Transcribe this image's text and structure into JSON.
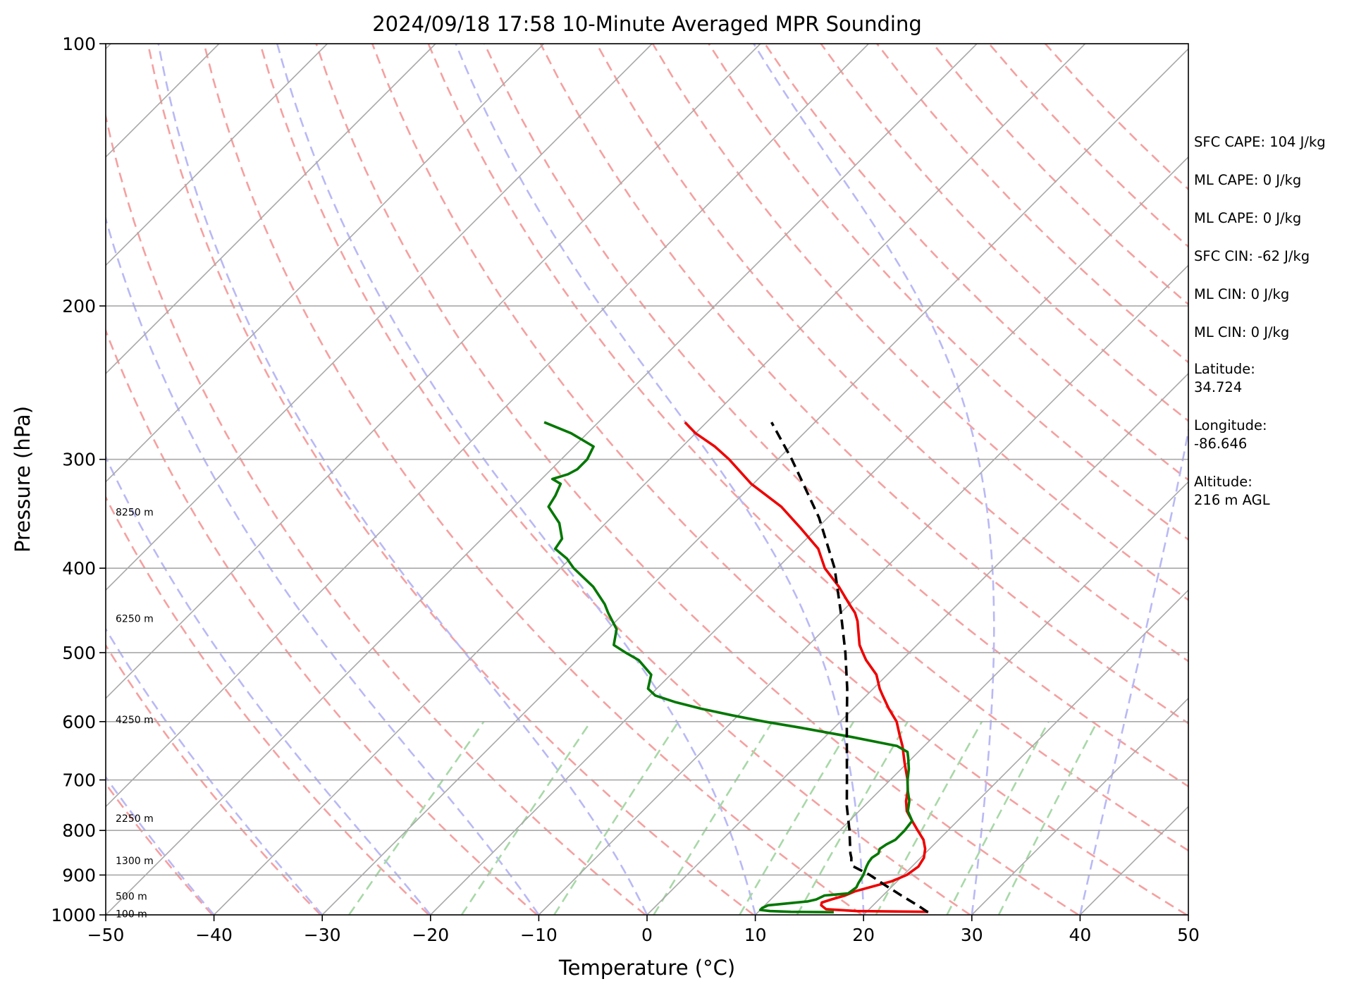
{
  "chart_data": {
    "type": "line",
    "subtype": "skew-t log-p",
    "title": "2024/09/18 17:58 10-Minute Averaged MPR Sounding",
    "xlabel": "Temperature (°C)",
    "ylabel": "Pressure (hPa)",
    "xlim": [
      -50,
      50
    ],
    "ylim": [
      1000,
      100
    ],
    "y_scale": "log",
    "x_ticks": [
      -50,
      -40,
      -30,
      -20,
      -10,
      0,
      10,
      20,
      30,
      40,
      50
    ],
    "x_tick_labels": [
      "−50",
      "−40",
      "−30",
      "−20",
      "−10",
      "0",
      "10",
      "20",
      "30",
      "40",
      "50"
    ],
    "y_ticks": [
      1000,
      900,
      800,
      700,
      600,
      500,
      400,
      300,
      200,
      100
    ],
    "y_tick_labels": [
      "1000",
      "900",
      "800",
      "700",
      "600",
      "500",
      "400",
      "300",
      "200",
      "100"
    ],
    "height_labels": [
      {
        "text": "100 m",
        "p": 997
      },
      {
        "text": "500 m",
        "p": 952
      },
      {
        "text": "1300 m",
        "p": 866
      },
      {
        "text": "2250 m",
        "p": 775
      },
      {
        "text": "4250 m",
        "p": 597
      },
      {
        "text": "6250 m",
        "p": 457
      },
      {
        "text": "8250 m",
        "p": 345
      }
    ],
    "background_lines": {
      "isobars_hpa": [
        100,
        200,
        300,
        400,
        500,
        600,
        700,
        800,
        900,
        1000
      ],
      "isotherms_c": [
        -140,
        -130,
        -120,
        -110,
        -100,
        -90,
        -80,
        -70,
        -60,
        -50,
        -40,
        -30,
        -20,
        -10,
        0,
        10,
        20,
        30,
        40,
        50
      ],
      "dry_adiabats_theta_k": [
        233,
        243,
        253,
        263,
        273,
        283,
        293,
        303,
        313,
        323,
        333,
        343,
        353,
        363,
        373,
        383,
        393,
        403,
        413,
        423,
        433,
        443
      ],
      "moist_adiabats_t1000_c": [
        -50,
        -40,
        -30,
        -20,
        -10,
        0,
        10,
        20,
        30,
        40,
        50
      ],
      "mixing_ratios_gkg": [
        0.4,
        1,
        2,
        4,
        7,
        10,
        16,
        24,
        32
      ],
      "colors": {
        "isotherm": "#a8a8a8",
        "dry_adiabat": "#f5a0a0",
        "moist_adiabat": "#b9b9f5",
        "mixing_ratio": "#a8d8a8",
        "isobar": "#a8a8a8"
      }
    },
    "series": [
      {
        "name": "temperature",
        "color": "#ee0000",
        "points": [
          [
            992,
            25.7
          ],
          [
            990,
            19.0
          ],
          [
            985,
            16.0
          ],
          [
            975,
            15.2
          ],
          [
            968,
            15.0
          ],
          [
            960,
            15.6
          ],
          [
            950,
            16.5
          ],
          [
            940,
            17.0
          ],
          [
            930,
            18.0
          ],
          [
            915,
            19.5
          ],
          [
            900,
            20.3
          ],
          [
            880,
            20.6
          ],
          [
            860,
            20.3
          ],
          [
            840,
            19.6
          ],
          [
            820,
            18.6
          ],
          [
            800,
            17.2
          ],
          [
            780,
            15.8
          ],
          [
            760,
            14.4
          ],
          [
            740,
            13.4
          ],
          [
            720,
            12.6
          ],
          [
            700,
            11.6
          ],
          [
            670,
            9.8
          ],
          [
            640,
            8.0
          ],
          [
            620,
            6.6
          ],
          [
            600,
            5.2
          ],
          [
            580,
            3.3
          ],
          [
            560,
            1.5
          ],
          [
            550,
            0.6
          ],
          [
            530,
            -1.0
          ],
          [
            510,
            -3.3
          ],
          [
            500,
            -4.3
          ],
          [
            490,
            -5.3
          ],
          [
            460,
            -7.7
          ],
          [
            450,
            -8.7
          ],
          [
            440,
            -10.0
          ],
          [
            420,
            -12.6
          ],
          [
            400,
            -15.6
          ],
          [
            380,
            -18.0
          ],
          [
            360,
            -21.5
          ],
          [
            340,
            -25.3
          ],
          [
            320,
            -30.2
          ],
          [
            300,
            -34.5
          ],
          [
            290,
            -37.0
          ],
          [
            280,
            -40.0
          ],
          [
            272,
            -42.0
          ]
        ]
      },
      {
        "name": "dewpoint",
        "color": "#007700",
        "points": [
          [
            993,
            17.0
          ],
          [
            992,
            13.0
          ],
          [
            990,
            11.0
          ],
          [
            987,
            10.0
          ],
          [
            982,
            10.0
          ],
          [
            975,
            10.3
          ],
          [
            965,
            13.6
          ],
          [
            960,
            14.2
          ],
          [
            950,
            14.6
          ],
          [
            945,
            16.6
          ],
          [
            930,
            16.8
          ],
          [
            920,
            16.6
          ],
          [
            900,
            16.3
          ],
          [
            880,
            15.8
          ],
          [
            870,
            15.6
          ],
          [
            860,
            15.5
          ],
          [
            850,
            15.7
          ],
          [
            840,
            15.4
          ],
          [
            830,
            15.6
          ],
          [
            820,
            16.0
          ],
          [
            800,
            16.0
          ],
          [
            780,
            15.8
          ],
          [
            760,
            14.5
          ],
          [
            740,
            13.7
          ],
          [
            720,
            12.6
          ],
          [
            700,
            11.6
          ],
          [
            680,
            10.7
          ],
          [
            660,
            9.6
          ],
          [
            650,
            9.0
          ],
          [
            640,
            7.5
          ],
          [
            625,
            2.5
          ],
          [
            610,
            -3.0
          ],
          [
            600,
            -7.0
          ],
          [
            590,
            -10.6
          ],
          [
            580,
            -14.0
          ],
          [
            570,
            -17.0
          ],
          [
            560,
            -19.5
          ],
          [
            550,
            -20.8
          ],
          [
            540,
            -21.3
          ],
          [
            530,
            -21.8
          ],
          [
            510,
            -24.3
          ],
          [
            500,
            -26.2
          ],
          [
            490,
            -28.0
          ],
          [
            470,
            -29.2
          ],
          [
            450,
            -31.5
          ],
          [
            440,
            -32.6
          ],
          [
            420,
            -35.3
          ],
          [
            400,
            -38.8
          ],
          [
            390,
            -40.3
          ],
          [
            380,
            -42.3
          ],
          [
            370,
            -42.6
          ],
          [
            355,
            -44.3
          ],
          [
            340,
            -46.8
          ],
          [
            330,
            -47.2
          ],
          [
            320,
            -47.8
          ],
          [
            316,
            -49.0
          ],
          [
            312,
            -48.0
          ],
          [
            308,
            -47.6
          ],
          [
            300,
            -47.6
          ],
          [
            290,
            -48.2
          ],
          [
            280,
            -51.5
          ],
          [
            272,
            -55.0
          ]
        ]
      },
      {
        "name": "parcel",
        "color": "#000000",
        "dashed": true,
        "points": [
          [
            993,
            25.7
          ],
          [
            975,
            24.1
          ],
          [
            950,
            21.7
          ],
          [
            925,
            19.3
          ],
          [
            900,
            16.9
          ],
          [
            880,
            14.6
          ],
          [
            870,
            14.0
          ],
          [
            860,
            13.6
          ],
          [
            850,
            13.1
          ],
          [
            800,
            10.9
          ],
          [
            750,
            8.4
          ],
          [
            700,
            6.0
          ],
          [
            650,
            3.4
          ],
          [
            600,
            0.6
          ],
          [
            550,
            -2.4
          ],
          [
            500,
            -5.9
          ],
          [
            450,
            -10.0
          ],
          [
            400,
            -14.7
          ],
          [
            350,
            -20.8
          ],
          [
            300,
            -28.7
          ],
          [
            272,
            -34.0
          ]
        ]
      }
    ]
  },
  "info_panel": {
    "sfc_cape": "SFC CAPE: 104 J/kg",
    "ml_cape_1": "ML CAPE: 0 J/kg",
    "ml_cape_2": "ML CAPE: 0 J/kg",
    "sfc_cin": "SFC CIN: -62 J/kg",
    "ml_cin_1": "ML CIN: 0 J/kg",
    "ml_cin_2": "ML CIN: 0 J/kg",
    "latitude_label": "Latitude:",
    "latitude_value": "34.724",
    "longitude_label": "Longitude:",
    "longitude_value": "-86.646",
    "altitude_label": "Altitude:",
    "altitude_value": "216 m AGL"
  }
}
